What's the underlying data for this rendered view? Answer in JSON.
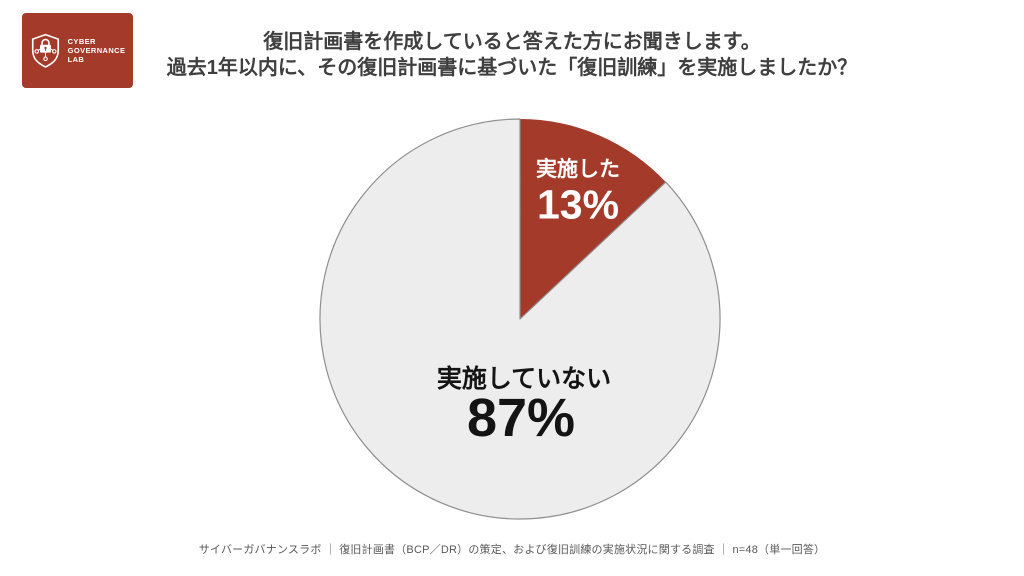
{
  "logo": {
    "line1": "CYBER",
    "line2": "GOVERNANCE",
    "line3": "LAB",
    "icon": "shield-lock-network-icon",
    "background_color": "#a43a29",
    "text_color": "#ffffff"
  },
  "title": {
    "line1": "復旧計画書を作成していると答えた方にお聞きします。",
    "line2": "過去1年以内に、その復旧計画書に基づいた「復旧訓練」を実施しましたか？",
    "color": "#3f3f3f"
  },
  "chart_data": {
    "type": "pie",
    "title": "復旧訓練の実施状況",
    "start_angle_deg": 0,
    "direction": "clockwise",
    "legend": "none",
    "slices": [
      {
        "label": "実施した",
        "value": 13,
        "pct_label": "13%",
        "color": "#a43a29",
        "stroke": "",
        "text_color": "#ffffff"
      },
      {
        "label": "実施していない",
        "value": 87,
        "pct_label": "87%",
        "color": "#ededee",
        "stroke": "#8f8f91",
        "text_color": "#141414"
      }
    ]
  },
  "footer": {
    "text": "サイバーガバナンスラボ ｜ 復旧計画書（BCP／DR）の策定、および復旧訓練の実施状況に関する調査 ｜ n=48（単一回答）"
  }
}
